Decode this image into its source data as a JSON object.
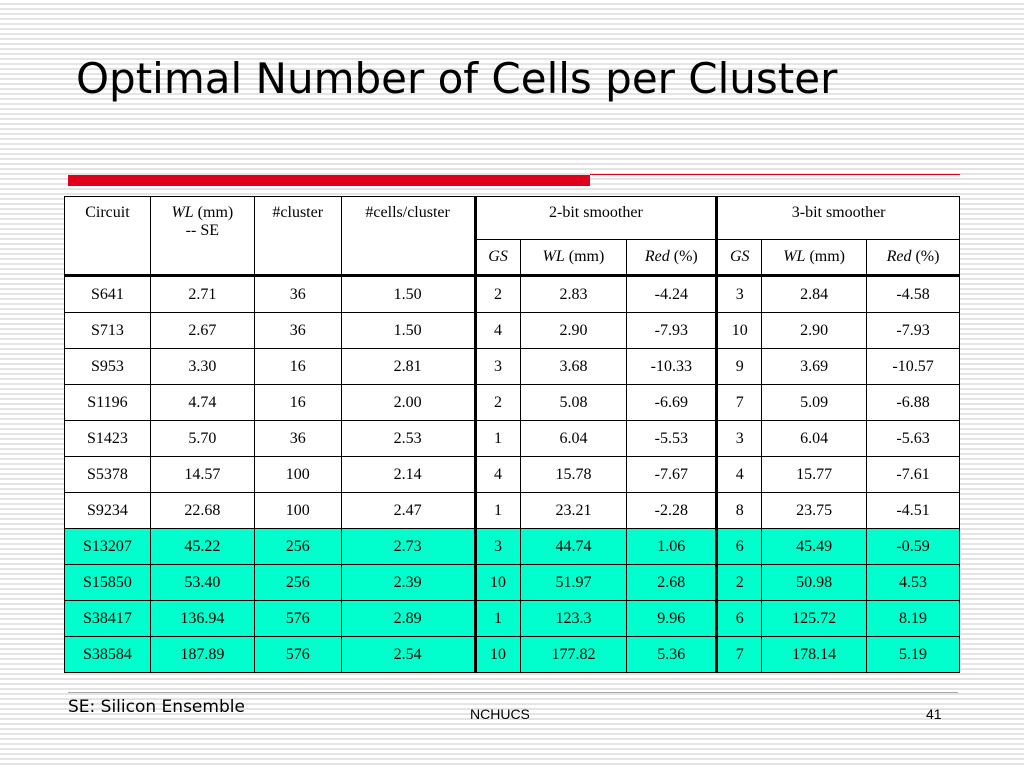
{
  "slide": {
    "title": "Optimal Number of Cells per Cluster",
    "note": "SE: Silicon Ensemble",
    "footer": "NCHUCS",
    "page_number": "41",
    "colors": {
      "accent_red": "#e0001b",
      "highlight": "#00ffcc"
    }
  },
  "table": {
    "headers": {
      "circuit": "Circuit",
      "wl_italic": "WL",
      "wl_unit": " (mm)",
      "wl_line2": "-- SE",
      "cluster": "#cluster",
      "cells_cluster": "#cells/cluster",
      "group1": "2-bit smoother",
      "group2": "3-bit smoother",
      "gs": "GS",
      "wl": "WL",
      "mm": " (mm)",
      "red": "Red",
      "pct": " (%)"
    },
    "rows": [
      {
        "circuit": "S641",
        "wl": "2.71",
        "cluster": "36",
        "cells": "1.50",
        "gs2": "2",
        "wl2": "2.83",
        "red2": "-4.24",
        "gs3": "3",
        "wl3": "2.84",
        "red3": "-4.58",
        "highlight": false
      },
      {
        "circuit": "S713",
        "wl": "2.67",
        "cluster": "36",
        "cells": "1.50",
        "gs2": "4",
        "wl2": "2.90",
        "red2": "-7.93",
        "gs3": "10",
        "wl3": "2.90",
        "red3": "-7.93",
        "highlight": false
      },
      {
        "circuit": "S953",
        "wl": "3.30",
        "cluster": "16",
        "cells": "2.81",
        "gs2": "3",
        "wl2": "3.68",
        "red2": "-10.33",
        "gs3": "9",
        "wl3": "3.69",
        "red3": "-10.57",
        "highlight": false
      },
      {
        "circuit": "S1196",
        "wl": "4.74",
        "cluster": "16",
        "cells": "2.00",
        "gs2": "2",
        "wl2": "5.08",
        "red2": "-6.69",
        "gs3": "7",
        "wl3": "5.09",
        "red3": "-6.88",
        "highlight": false
      },
      {
        "circuit": "S1423",
        "wl": "5.70",
        "cluster": "36",
        "cells": "2.53",
        "gs2": "1",
        "wl2": "6.04",
        "red2": "-5.53",
        "gs3": "3",
        "wl3": "6.04",
        "red3": "-5.63",
        "highlight": false
      },
      {
        "circuit": "S5378",
        "wl": "14.57",
        "cluster": "100",
        "cells": "2.14",
        "gs2": "4",
        "wl2": "15.78",
        "red2": "-7.67",
        "gs3": "4",
        "wl3": "15.77",
        "red3": "-7.61",
        "highlight": false
      },
      {
        "circuit": "S9234",
        "wl": "22.68",
        "cluster": "100",
        "cells": "2.47",
        "gs2": "1",
        "wl2": "23.21",
        "red2": "-2.28",
        "gs3": "8",
        "wl3": "23.75",
        "red3": "-4.51",
        "highlight": false
      },
      {
        "circuit": "S13207",
        "wl": "45.22",
        "cluster": "256",
        "cells": "2.73",
        "gs2": "3",
        "wl2": "44.74",
        "red2": "1.06",
        "gs3": "6",
        "wl3": "45.49",
        "red3": "-0.59",
        "highlight": true
      },
      {
        "circuit": "S15850",
        "wl": "53.40",
        "cluster": "256",
        "cells": "2.39",
        "gs2": "10",
        "wl2": "51.97",
        "red2": "2.68",
        "gs3": "2",
        "wl3": "50.98",
        "red3": "4.53",
        "highlight": true
      },
      {
        "circuit": "S38417",
        "wl": "136.94",
        "cluster": "576",
        "cells": "2.89",
        "gs2": "1",
        "wl2": "123.3",
        "red2": "9.96",
        "gs3": "6",
        "wl3": "125.72",
        "red3": "8.19",
        "highlight": true
      },
      {
        "circuit": "S38584",
        "wl": "187.89",
        "cluster": "576",
        "cells": "2.54",
        "gs2": "10",
        "wl2": "177.82",
        "red2": "5.36",
        "gs3": "7",
        "wl3": "178.14",
        "red3": "5.19",
        "highlight": true
      }
    ]
  }
}
